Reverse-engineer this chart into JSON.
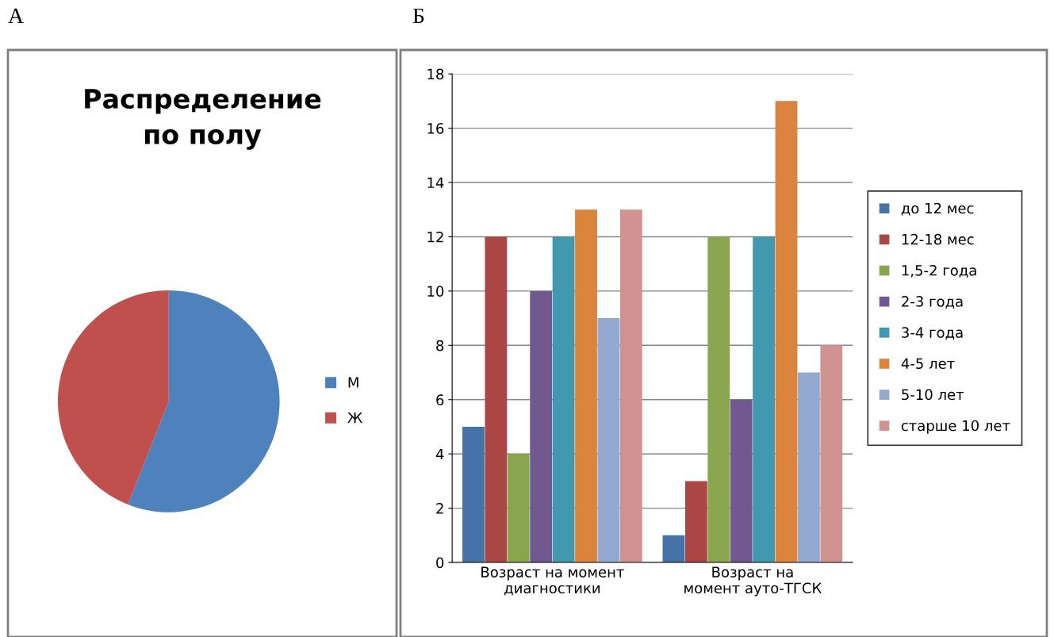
{
  "chart_data": [
    {
      "type": "pie",
      "title": "Распределение по полу",
      "categories": [
        "М",
        "Ж"
      ],
      "values": [
        56,
        44
      ],
      "colors": [
        "#4f81bd",
        "#c0504d"
      ],
      "legend": "right",
      "annotations": [
        "А"
      ]
    },
    {
      "type": "bar",
      "categories": [
        "Возраст на момент диагностики",
        "Возраст на момент ауто-ТГСК"
      ],
      "ylim": [
        0,
        18
      ],
      "yticks": [
        0,
        2,
        4,
        6,
        8,
        10,
        12,
        14,
        16,
        18
      ],
      "grid": "y",
      "legend": "right",
      "annotations": [
        "Б"
      ],
      "series": [
        {
          "name": "до 12 мес",
          "color": "#4572a7",
          "values": [
            5,
            1
          ]
        },
        {
          "name": "12-18 мес",
          "color": "#aa4643",
          "values": [
            12,
            3
          ]
        },
        {
          "name": "1,5-2 года",
          "color": "#89a54e",
          "values": [
            4,
            12
          ]
        },
        {
          "name": "2-3 года",
          "color": "#71588f",
          "values": [
            10,
            6
          ]
        },
        {
          "name": "3-4 года",
          "color": "#4198af",
          "values": [
            12,
            12
          ]
        },
        {
          "name": "4-5 лет",
          "color": "#db843d",
          "values": [
            13,
            17
          ]
        },
        {
          "name": "5-10 лет",
          "color": "#93a9cf",
          "values": [
            9,
            7
          ]
        },
        {
          "name": "старше 10 лет",
          "color": "#d19392",
          "values": [
            13,
            8
          ]
        }
      ]
    }
  ]
}
